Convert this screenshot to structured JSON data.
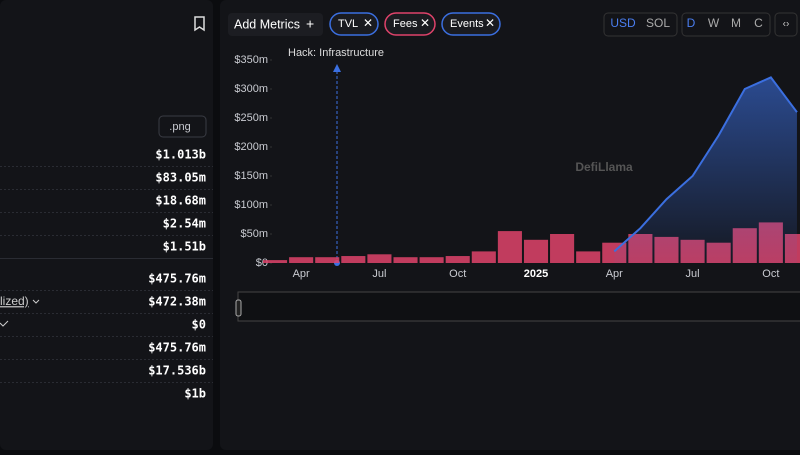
{
  "sidebar": {
    "export_button": ".png",
    "rows": [
      "$1.013b",
      "$83.05m",
      "$18.68m",
      "$2.54m",
      "$1.51b",
      "$475.76m",
      "$472.38m",
      "$0",
      "$475.76m",
      "$17.536b",
      "$1b"
    ],
    "partial_label": "lized)"
  },
  "toolbar": {
    "add_metrics": "Add Metrics",
    "metrics": [
      "TVL",
      "Fees",
      "Events"
    ],
    "currencies": [
      "USD",
      "SOL"
    ],
    "periods": [
      "D",
      "W",
      "M",
      "C"
    ]
  },
  "watermark": "DefiLlama",
  "chart_data": {
    "type": "bar-line",
    "annotation": "Hack: Infrastructure",
    "categories": [
      null,
      "Apr",
      null,
      null,
      "Jul",
      null,
      null,
      "Oct",
      null,
      null,
      "2025",
      null,
      null,
      "Apr",
      null,
      null,
      "Jul",
      null,
      null,
      "Oct",
      null
    ],
    "series": [
      {
        "name": "Fees",
        "type": "bar",
        "color": "#e0436b",
        "values": [
          5,
          10,
          10,
          12,
          15,
          10,
          10,
          12,
          20,
          55,
          40,
          50,
          20,
          35,
          50,
          45,
          40,
          35,
          60,
          70,
          50
        ]
      },
      {
        "name": "TVL",
        "type": "line",
        "color": "#3b6fe0",
        "values": [
          null,
          null,
          null,
          null,
          null,
          null,
          null,
          null,
          null,
          null,
          null,
          null,
          null,
          20,
          60,
          110,
          150,
          220,
          300,
          320,
          260
        ]
      }
    ],
    "ylim": [
      0,
      350
    ],
    "yticks": [
      {
        "value": 0,
        "label": "$0"
      },
      {
        "value": 50,
        "label": "$50m"
      },
      {
        "value": 100,
        "label": "$100m"
      },
      {
        "value": 150,
        "label": "$150m"
      },
      {
        "value": 200,
        "label": "$200m"
      },
      {
        "value": 250,
        "label": "$250m"
      },
      {
        "value": 300,
        "label": "$300m"
      },
      {
        "value": 350,
        "label": "$350m"
      }
    ]
  }
}
